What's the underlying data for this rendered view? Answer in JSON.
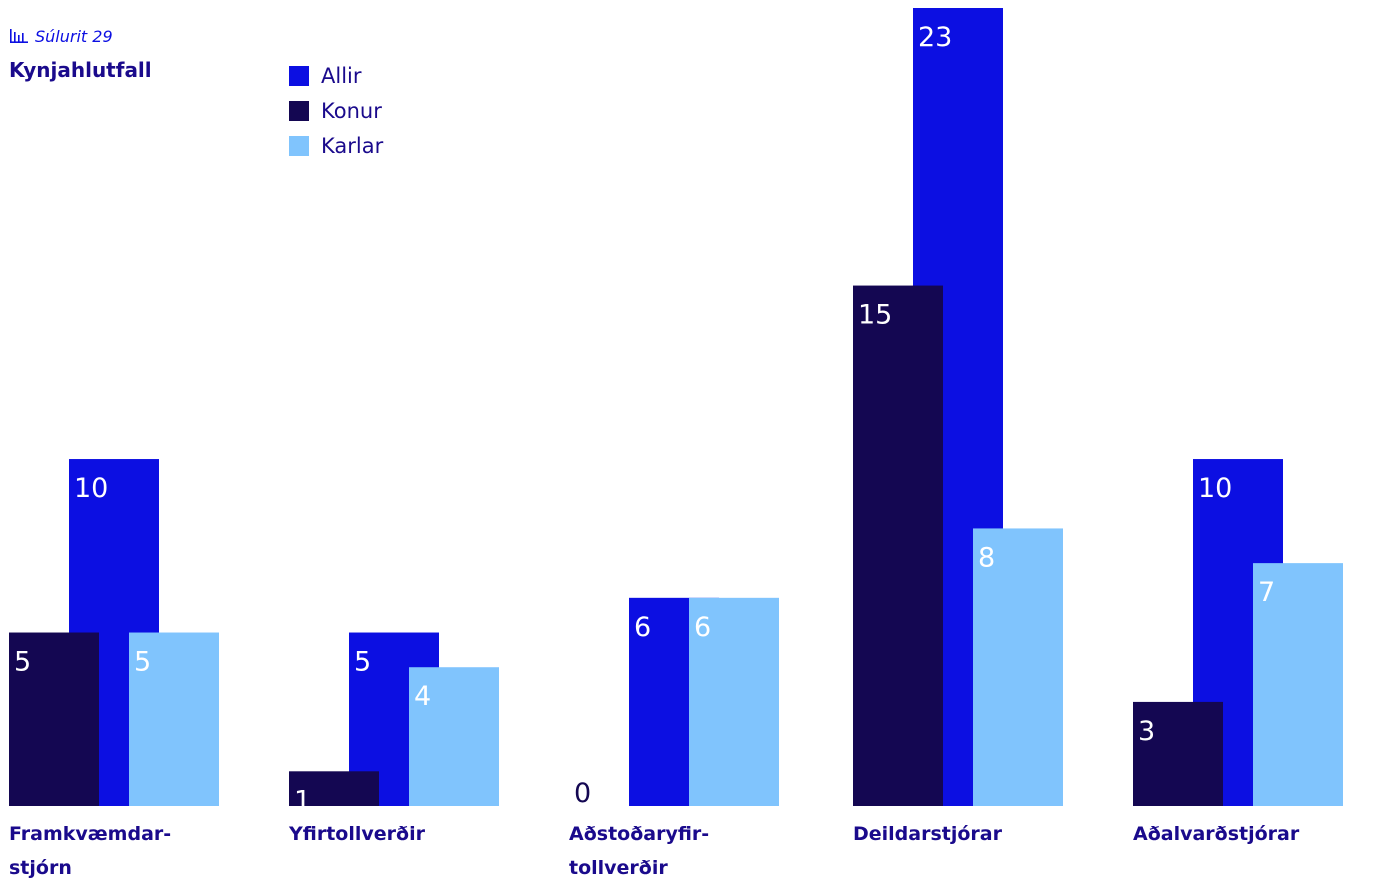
{
  "caption": "Súlurit 29",
  "chart_data": {
    "type": "bar",
    "title": "Kynjahlutfall",
    "categories": [
      [
        "Framkvæmdar-",
        "stjórn"
      ],
      [
        "Yfirtollverðir"
      ],
      [
        "Aðstoðaryfir-",
        "tollverðir"
      ],
      [
        "Deildarstjórar"
      ],
      [
        "Aðalvarðstjórar"
      ]
    ],
    "series": [
      {
        "name": "Konur",
        "values": [
          5,
          1,
          0,
          15,
          3
        ]
      },
      {
        "name": "Allir",
        "values": [
          10,
          5,
          6,
          23,
          10
        ]
      },
      {
        "name": "Karlar",
        "values": [
          5,
          4,
          6,
          8,
          7
        ]
      }
    ],
    "legend": [
      "Allir",
      "Konur",
      "Karlar"
    ],
    "legend_placement": "top",
    "grid": false,
    "ylim": [
      0,
      23
    ],
    "colors": {
      "Allir": "#0c0fe2",
      "Konur": "#140752",
      "Karlar": "#80c4fd"
    },
    "label_colors": {
      "Allir": "#ffffff",
      "Konur": "#ffffff",
      "Karlar": "#ffffff"
    },
    "text_color": "#1a0a8c",
    "zero_label_color": "#140752"
  },
  "icons": {
    "caption_icon": "bar-chart-icon"
  }
}
